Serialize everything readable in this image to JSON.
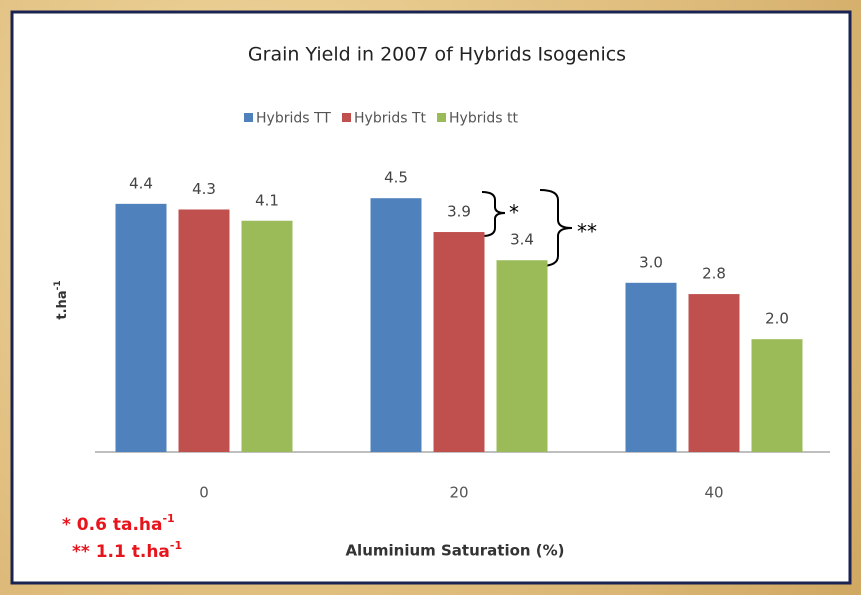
{
  "chart_data": {
    "type": "bar",
    "title": "Grain Yield in 2007 of Hybrids Isogenics",
    "x_label": "Aluminium Saturation (%)",
    "y_label": {
      "text": "t.ha",
      "sup": "-1"
    },
    "categories": [
      "0",
      "20",
      "40"
    ],
    "series": [
      {
        "name": "Hybrids TT",
        "color": "#4f81bd",
        "values": [
          4.4,
          4.5,
          3.0
        ],
        "value_labels": [
          "4.4",
          "4.5",
          "3.0"
        ]
      },
      {
        "name": "Hybrids Tt",
        "color": "#c0504d",
        "values": [
          4.3,
          3.9,
          2.8
        ],
        "value_labels": [
          "4.3",
          "3.9",
          "2.8"
        ]
      },
      {
        "name": "Hybrids tt",
        "color": "#9bbb59",
        "values": [
          4.1,
          3.4,
          2.0
        ],
        "value_labels": [
          "4.1",
          "3.4",
          "2.0"
        ]
      }
    ],
    "ylim": [
      0,
      5
    ],
    "legend": "top",
    "annotations": [
      {
        "text": "*"
      },
      {
        "text": "**"
      },
      {
        "text": "* 0.6 ta.ha",
        "sup": "-1"
      },
      {
        "text": "** 1.1 t.ha",
        "sup": "-1"
      }
    ]
  }
}
